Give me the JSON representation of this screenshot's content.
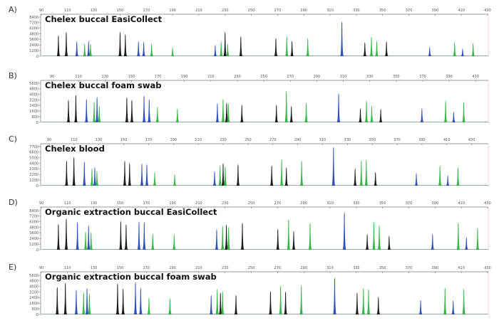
{
  "dye_colors": {
    "black": "#1b1b1b",
    "blue": "#2e4fb8",
    "green": "#39b449"
  },
  "chart_data": [
    {
      "type": "line",
      "panel_label": "A)",
      "title": "Chelex buccal EasiCollect",
      "x_ticks": [
        90,
        110,
        130,
        150,
        170,
        190,
        210,
        230,
        250,
        270,
        290,
        310,
        330,
        350,
        370,
        390,
        410,
        430
      ],
      "y_ticks": [
        0,
        1200,
        2400,
        3600,
        4800,
        6000,
        7200,
        8400
      ],
      "ylim": [
        0,
        8400
      ],
      "peaks": [
        {
          "x": 103,
          "y": 4600,
          "c": "black"
        },
        {
          "x": 109,
          "y": 5300,
          "c": "black"
        },
        {
          "x": 117,
          "y": 3300,
          "c": "blue"
        },
        {
          "x": 123,
          "y": 2800,
          "c": "green"
        },
        {
          "x": 126,
          "y": 3400,
          "c": "blue"
        },
        {
          "x": 127.5,
          "y": 2800,
          "c": "green"
        },
        {
          "x": 150,
          "y": 5300,
          "c": "black"
        },
        {
          "x": 154,
          "y": 4800,
          "c": "black"
        },
        {
          "x": 164,
          "y": 3300,
          "c": "blue"
        },
        {
          "x": 168,
          "y": 3200,
          "c": "blue"
        },
        {
          "x": 174,
          "y": 2800,
          "c": "green"
        },
        {
          "x": 190,
          "y": 2000,
          "c": "green"
        },
        {
          "x": 222.5,
          "y": 2500,
          "c": "blue"
        },
        {
          "x": 227,
          "y": 3300,
          "c": "green"
        },
        {
          "x": 230,
          "y": 5300,
          "c": "black"
        },
        {
          "x": 232,
          "y": 2800,
          "c": "green"
        },
        {
          "x": 242,
          "y": 4400,
          "c": "black"
        },
        {
          "x": 268.7,
          "y": 4000,
          "c": "black"
        },
        {
          "x": 277,
          "y": 4400,
          "c": "green"
        },
        {
          "x": 281,
          "y": 3400,
          "c": "black"
        },
        {
          "x": 293,
          "y": 4000,
          "c": "green"
        },
        {
          "x": 319,
          "y": 7500,
          "c": "blue"
        },
        {
          "x": 336.5,
          "y": 3100,
          "c": "black"
        },
        {
          "x": 341.5,
          "y": 4300,
          "c": "green"
        },
        {
          "x": 345.6,
          "y": 3400,
          "c": "green"
        },
        {
          "x": 353,
          "y": 3300,
          "c": "black"
        },
        {
          "x": 385.9,
          "y": 2100,
          "c": "blue"
        },
        {
          "x": 404.9,
          "y": 3100,
          "c": "green"
        },
        {
          "x": 411,
          "y": 1800,
          "c": "blue"
        },
        {
          "x": 419,
          "y": 2900,
          "c": "green"
        }
      ]
    },
    {
      "type": "line",
      "panel_label": "B)",
      "title": "Chelex buccal foam swab",
      "x_ticks": [
        90,
        110,
        130,
        150,
        170,
        190,
        210,
        230,
        250,
        270,
        290,
        310,
        330,
        350,
        370,
        390,
        410
      ],
      "y_ticks": [
        0,
        800,
        1600,
        2400,
        3200,
        4000,
        4800,
        5600
      ],
      "ylim": [
        0,
        5600
      ],
      "peaks": [
        {
          "x": 102.4,
          "y": 3300,
          "c": "black"
        },
        {
          "x": 108,
          "y": 4000,
          "c": "black"
        },
        {
          "x": 116,
          "y": 3400,
          "c": "blue"
        },
        {
          "x": 121.8,
          "y": 3000,
          "c": "green"
        },
        {
          "x": 124,
          "y": 3700,
          "c": "blue"
        },
        {
          "x": 125.7,
          "y": 2400,
          "c": "green"
        },
        {
          "x": 146.5,
          "y": 3650,
          "c": "black"
        },
        {
          "x": 150.3,
          "y": 3300,
          "c": "black"
        },
        {
          "x": 159.5,
          "y": 3900,
          "c": "blue"
        },
        {
          "x": 163.4,
          "y": 3400,
          "c": "blue"
        },
        {
          "x": 169.6,
          "y": 2300,
          "c": "green"
        },
        {
          "x": 184.7,
          "y": 2100,
          "c": "green"
        },
        {
          "x": 214.9,
          "y": 2800,
          "c": "blue"
        },
        {
          "x": 219.2,
          "y": 3450,
          "c": "green"
        },
        {
          "x": 221.9,
          "y": 2900,
          "c": "black"
        },
        {
          "x": 223.2,
          "y": 2800,
          "c": "green"
        },
        {
          "x": 233.4,
          "y": 2600,
          "c": "black"
        },
        {
          "x": 259.5,
          "y": 2600,
          "c": "black"
        },
        {
          "x": 267,
          "y": 4600,
          "c": "green"
        },
        {
          "x": 270.8,
          "y": 2400,
          "c": "black"
        },
        {
          "x": 282,
          "y": 2900,
          "c": "green"
        },
        {
          "x": 306.5,
          "y": 4250,
          "c": "blue"
        },
        {
          "x": 322.9,
          "y": 2100,
          "c": "black"
        },
        {
          "x": 327.5,
          "y": 3200,
          "c": "green"
        },
        {
          "x": 331.5,
          "y": 2400,
          "c": "green"
        },
        {
          "x": 338.3,
          "y": 2000,
          "c": "black"
        },
        {
          "x": 369.4,
          "y": 2100,
          "c": "blue"
        },
        {
          "x": 387.3,
          "y": 3200,
          "c": "green"
        },
        {
          "x": 393.4,
          "y": 1600,
          "c": "blue"
        },
        {
          "x": 401,
          "y": 3000,
          "c": "green"
        }
      ]
    },
    {
      "type": "line",
      "panel_label": "C)",
      "title": "Chelex blood",
      "x_ticks": [
        90,
        110,
        130,
        150,
        170,
        190,
        210,
        230,
        250,
        270,
        290,
        310,
        330,
        350,
        370,
        390,
        410,
        430
      ],
      "y_ticks": [
        0,
        1100,
        2200,
        3300,
        4400,
        5500,
        6600,
        7700
      ],
      "ylim": [
        0,
        7700
      ],
      "peaks": [
        {
          "x": 104,
          "y": 5000,
          "c": "black"
        },
        {
          "x": 109.9,
          "y": 5700,
          "c": "black"
        },
        {
          "x": 118.3,
          "y": 4850,
          "c": "blue"
        },
        {
          "x": 124.4,
          "y": 3500,
          "c": "green"
        },
        {
          "x": 126.7,
          "y": 3750,
          "c": "blue"
        },
        {
          "x": 128.4,
          "y": 3000,
          "c": "green"
        },
        {
          "x": 150.8,
          "y": 5000,
          "c": "black"
        },
        {
          "x": 154.7,
          "y": 4550,
          "c": "black"
        },
        {
          "x": 164.6,
          "y": 4450,
          "c": "blue"
        },
        {
          "x": 168.6,
          "y": 4300,
          "c": "blue"
        },
        {
          "x": 174.9,
          "y": 2800,
          "c": "green"
        },
        {
          "x": 191,
          "y": 2350,
          "c": "green"
        },
        {
          "x": 223.1,
          "y": 3000,
          "c": "blue"
        },
        {
          "x": 227.5,
          "y": 4100,
          "c": "green"
        },
        {
          "x": 230,
          "y": 4550,
          "c": "black"
        },
        {
          "x": 231.7,
          "y": 3950,
          "c": "green"
        },
        {
          "x": 242,
          "y": 4300,
          "c": "black"
        },
        {
          "x": 269.1,
          "y": 4100,
          "c": "black"
        },
        {
          "x": 277.1,
          "y": 5300,
          "c": "green"
        },
        {
          "x": 280.9,
          "y": 3700,
          "c": "black"
        },
        {
          "x": 293.2,
          "y": 5000,
          "c": "green"
        },
        {
          "x": 318.8,
          "y": 7700,
          "c": "blue"
        },
        {
          "x": 336.2,
          "y": 3500,
          "c": "black"
        },
        {
          "x": 341.2,
          "y": 5000,
          "c": "green"
        },
        {
          "x": 345.2,
          "y": 5200,
          "c": "green"
        },
        {
          "x": 352.6,
          "y": 2800,
          "c": "black"
        },
        {
          "x": 385.5,
          "y": 2550,
          "c": "blue"
        },
        {
          "x": 404.5,
          "y": 4100,
          "c": "green"
        },
        {
          "x": 410.8,
          "y": 2150,
          "c": "blue"
        },
        {
          "x": 419,
          "y": 3750,
          "c": "green"
        }
      ]
    },
    {
      "type": "line",
      "panel_label": "D)",
      "title": "Organic extraction buccal EasiCollect",
      "x_ticks": [
        90,
        110,
        130,
        150,
        170,
        190,
        210,
        230,
        250,
        270,
        290,
        310,
        330,
        350,
        370,
        390,
        410,
        430
      ],
      "y_ticks": [
        0,
        1200,
        2400,
        3600,
        4800,
        6000,
        7200,
        8400
      ],
      "ylim": [
        0,
        8400
      ],
      "peaks": [
        {
          "x": 103,
          "y": 5650,
          "c": "black"
        },
        {
          "x": 109,
          "y": 6750,
          "c": "black"
        },
        {
          "x": 117.5,
          "y": 6050,
          "c": "blue"
        },
        {
          "x": 123.7,
          "y": 4000,
          "c": "green"
        },
        {
          "x": 126,
          "y": 5300,
          "c": "blue"
        },
        {
          "x": 127.9,
          "y": 3900,
          "c": "green"
        },
        {
          "x": 150.5,
          "y": 6250,
          "c": "black"
        },
        {
          "x": 154.6,
          "y": 5550,
          "c": "black"
        },
        {
          "x": 164.4,
          "y": 6150,
          "c": "blue"
        },
        {
          "x": 168.4,
          "y": 6050,
          "c": "blue"
        },
        {
          "x": 174.9,
          "y": 3600,
          "c": "green"
        },
        {
          "x": 191.2,
          "y": 3400,
          "c": "green"
        },
        {
          "x": 223.6,
          "y": 4500,
          "c": "blue"
        },
        {
          "x": 228.1,
          "y": 5250,
          "c": "green"
        },
        {
          "x": 231,
          "y": 5500,
          "c": "black"
        },
        {
          "x": 232.7,
          "y": 5000,
          "c": "green"
        },
        {
          "x": 243.2,
          "y": 5900,
          "c": "black"
        },
        {
          "x": 270.2,
          "y": 4600,
          "c": "black"
        },
        {
          "x": 278.4,
          "y": 6650,
          "c": "green"
        },
        {
          "x": 282.3,
          "y": 4100,
          "c": "black"
        },
        {
          "x": 294.8,
          "y": 5900,
          "c": "green"
        },
        {
          "x": 320.9,
          "y": 8150,
          "c": "blue"
        },
        {
          "x": 338.3,
          "y": 3500,
          "c": "black"
        },
        {
          "x": 343.4,
          "y": 6000,
          "c": "green"
        },
        {
          "x": 347.5,
          "y": 5400,
          "c": "green"
        },
        {
          "x": 355,
          "y": 3100,
          "c": "black"
        },
        {
          "x": 388.1,
          "y": 3500,
          "c": "blue"
        },
        {
          "x": 407.7,
          "y": 5900,
          "c": "green"
        },
        {
          "x": 413.9,
          "y": 2800,
          "c": "blue"
        },
        {
          "x": 422.4,
          "y": 4800,
          "c": "green"
        }
      ]
    },
    {
      "type": "line",
      "panel_label": "E)",
      "title": "Organic extraction buccal foam swab",
      "x_ticks": [
        90,
        110,
        130,
        150,
        170,
        190,
        210,
        230,
        250,
        270,
        290,
        310,
        330,
        350,
        370,
        390,
        410,
        430
      ],
      "y_ticks": [
        0,
        800,
        1600,
        2400,
        3200,
        4000,
        4800,
        5600
      ],
      "ylim": [
        0,
        5600
      ],
      "peaks": [
        {
          "x": 102.1,
          "y": 4000,
          "c": "black"
        },
        {
          "x": 108.3,
          "y": 4600,
          "c": "black"
        },
        {
          "x": 116.6,
          "y": 3600,
          "c": "blue"
        },
        {
          "x": 122.2,
          "y": 3250,
          "c": "green"
        },
        {
          "x": 124.8,
          "y": 3850,
          "c": "blue"
        },
        {
          "x": 126.6,
          "y": 3050,
          "c": "green"
        },
        {
          "x": 148.1,
          "y": 4500,
          "c": "black"
        },
        {
          "x": 152.3,
          "y": 3750,
          "c": "black"
        },
        {
          "x": 161.7,
          "y": 4700,
          "c": "blue"
        },
        {
          "x": 165.7,
          "y": 3850,
          "c": "blue"
        },
        {
          "x": 172,
          "y": 2500,
          "c": "green"
        },
        {
          "x": 188,
          "y": 2400,
          "c": "green"
        },
        {
          "x": 219.4,
          "y": 2850,
          "c": "blue"
        },
        {
          "x": 224,
          "y": 3700,
          "c": "green"
        },
        {
          "x": 226.5,
          "y": 3200,
          "c": "black"
        },
        {
          "x": 228.1,
          "y": 3400,
          "c": "green"
        },
        {
          "x": 238.3,
          "y": 2850,
          "c": "black"
        },
        {
          "x": 264.6,
          "y": 3400,
          "c": "black"
        },
        {
          "x": 272.3,
          "y": 4200,
          "c": "green"
        },
        {
          "x": 276.1,
          "y": 3350,
          "c": "black"
        },
        {
          "x": 288.1,
          "y": 4250,
          "c": "green"
        },
        {
          "x": 313.5,
          "y": 5300,
          "c": "blue"
        },
        {
          "x": 330.6,
          "y": 3200,
          "c": "black"
        },
        {
          "x": 335.4,
          "y": 3900,
          "c": "green"
        },
        {
          "x": 339.3,
          "y": 3700,
          "c": "green"
        },
        {
          "x": 346.8,
          "y": 2600,
          "c": "black"
        },
        {
          "x": 379,
          "y": 2150,
          "c": "blue"
        },
        {
          "x": 397.6,
          "y": 3900,
          "c": "green"
        },
        {
          "x": 403.8,
          "y": 2100,
          "c": "blue"
        },
        {
          "x": 411.9,
          "y": 3750,
          "c": "green"
        }
      ]
    }
  ]
}
